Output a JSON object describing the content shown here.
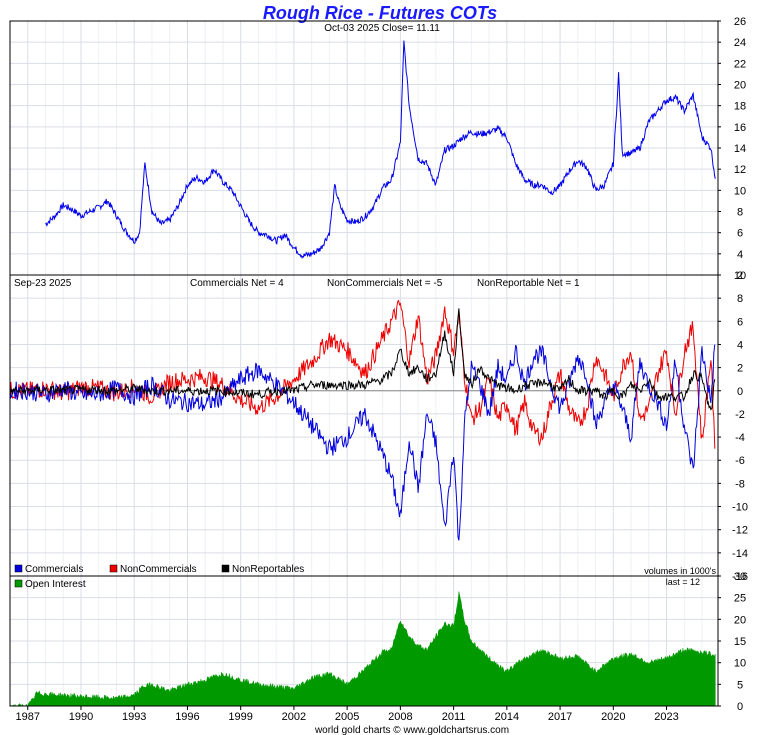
{
  "title": "Rough Rice - Futures COTs",
  "footer": "world gold charts © www.goldchartsrus.com",
  "colors": {
    "title": "#1a1aff",
    "price": "#0000ee",
    "commercials": "#0000dd",
    "noncommercials": "#ee0000",
    "nonreportables": "#000000",
    "open_interest": "#009900",
    "grid": "#d9dde6"
  },
  "chart_data": [
    {
      "type": "line",
      "name": "price-panel",
      "subtitle": "Oct-03  2025   Close= 11.11",
      "ylim": [
        2,
        26
      ],
      "yticks": [
        "2",
        "4",
        "6",
        "8",
        "10",
        "12",
        "14",
        "16",
        "18",
        "20",
        "22",
        "24",
        "26"
      ],
      "x": [
        1988.0,
        1988.5,
        1989.0,
        1989.5,
        1990.0,
        1990.5,
        1991.0,
        1991.5,
        1992.0,
        1992.5,
        1993.0,
        1993.3,
        1993.6,
        1994.0,
        1994.5,
        1995.0,
        1995.5,
        1996.0,
        1996.5,
        1997.0,
        1997.5,
        1998.0,
        1998.5,
        1999.0,
        1999.5,
        2000.0,
        2000.5,
        2001.0,
        2001.5,
        2002.0,
        2002.5,
        2003.0,
        2003.5,
        2004.0,
        2004.3,
        2004.6,
        2005.0,
        2005.5,
        2006.0,
        2006.5,
        2007.0,
        2007.5,
        2008.0,
        2008.2,
        2008.5,
        2009.0,
        2009.5,
        2010.0,
        2010.5,
        2011.0,
        2011.5,
        2012.0,
        2012.5,
        2013.0,
        2013.5,
        2014.0,
        2014.5,
        2015.0,
        2015.5,
        2016.0,
        2016.5,
        2017.0,
        2017.5,
        2018.0,
        2018.5,
        2019.0,
        2019.5,
        2020.0,
        2020.3,
        2020.5,
        2021.0,
        2021.5,
        2022.0,
        2022.5,
        2023.0,
        2023.5,
        2024.0,
        2024.5,
        2025.0,
        2025.5,
        2025.75
      ],
      "y": [
        6.8,
        7.5,
        8.6,
        8.2,
        7.6,
        8.0,
        8.4,
        9.0,
        7.6,
        6.2,
        5.2,
        6.0,
        12.5,
        8.0,
        6.8,
        7.2,
        8.6,
        10.5,
        11.2,
        10.8,
        12.0,
        10.8,
        10.0,
        8.5,
        7.0,
        6.0,
        5.8,
        5.2,
        5.8,
        4.6,
        3.8,
        4.0,
        4.5,
        6.0,
        10.4,
        8.5,
        7.2,
        7.0,
        7.5,
        8.5,
        10.2,
        11.0,
        14.5,
        24.0,
        18.0,
        13.0,
        12.5,
        10.5,
        13.8,
        14.2,
        15.0,
        15.5,
        15.3,
        15.5,
        15.8,
        15.0,
        12.5,
        11.0,
        10.5,
        10.5,
        9.8,
        10.4,
        11.8,
        12.8,
        12.2,
        10.0,
        10.5,
        12.5,
        21.0,
        13.5,
        13.5,
        14.0,
        16.5,
        17.5,
        18.5,
        18.8,
        17.5,
        19.0,
        15.0,
        14.0,
        11.1
      ]
    },
    {
      "type": "line",
      "name": "cot-panel",
      "subtitle": "Sep-23  2025",
      "labels": [
        "Commercials Net = 4",
        "NonCommercials Net = -5",
        "NonReportable Net = 1"
      ],
      "ylim": [
        -16,
        10
      ],
      "yticks": [
        "10",
        "8",
        "6",
        "4",
        "2",
        "0",
        "-2",
        "-4",
        "-6",
        "-8",
        "-10",
        "-12",
        "-14",
        "-16"
      ],
      "volumes_note": "volumes in 1000's",
      "x": [
        1986.0,
        1987.0,
        1988.0,
        1989.0,
        1990.0,
        1991.0,
        1992.0,
        1993.0,
        1994.0,
        1995.0,
        1996.0,
        1997.0,
        1998.0,
        1999.0,
        2000.0,
        2001.0,
        2002.0,
        2003.0,
        2004.0,
        2005.0,
        2006.0,
        2007.0,
        2007.5,
        2008.0,
        2008.5,
        2009.0,
        2009.5,
        2010.0,
        2010.5,
        2011.0,
        2011.3,
        2011.6,
        2012.0,
        2012.5,
        2013.0,
        2013.5,
        2014.0,
        2014.5,
        2015.0,
        2015.5,
        2016.0,
        2016.5,
        2017.0,
        2017.5,
        2018.0,
        2018.5,
        2019.0,
        2019.5,
        2020.0,
        2020.5,
        2021.0,
        2021.5,
        2022.0,
        2022.5,
        2023.0,
        2023.5,
        2024.0,
        2024.5,
        2025.0,
        2025.5,
        2025.72
      ],
      "series": [
        {
          "name": "Commercials",
          "values": [
            0,
            0,
            -0.3,
            0.2,
            -0.4,
            -0.3,
            0.2,
            -0.5,
            0.5,
            -0.8,
            -1.0,
            -1.2,
            -0.5,
            1.0,
            1.8,
            0.5,
            -1.0,
            -3.0,
            -5.0,
            -4.0,
            -2.0,
            -5.5,
            -7.5,
            -11.0,
            -4.0,
            -8.5,
            -2.0,
            -4.5,
            -12.0,
            -5.0,
            -13.5,
            -3.0,
            2.0,
            0.5,
            -2.0,
            2.0,
            0.8,
            3.5,
            0.5,
            3.0,
            3.2,
            0.5,
            -1.5,
            0.5,
            3.0,
            1.5,
            -3.0,
            -1.0,
            0.5,
            -1.5,
            -4.0,
            2.5,
            0.5,
            -1.0,
            -3.0,
            2.5,
            -3.0,
            -7.0,
            3.5,
            -1.0,
            4.0
          ]
        },
        {
          "name": "NonCommercials",
          "values": [
            0,
            0,
            0.2,
            -0.2,
            0.3,
            0.2,
            -0.2,
            0.3,
            -0.5,
            0.8,
            1.0,
            1.2,
            0.5,
            -0.8,
            -1.5,
            -0.5,
            1.0,
            2.5,
            4.5,
            3.5,
            1.5,
            4.5,
            6.0,
            7.5,
            2.5,
            6.5,
            1.0,
            3.0,
            7.0,
            3.5,
            6.5,
            1.5,
            -2.5,
            -1.5,
            1.0,
            -2.5,
            -1.0,
            -3.5,
            -1.0,
            -3.5,
            -4.0,
            -1.0,
            1.5,
            -1.5,
            -3.0,
            -1.5,
            3.0,
            1.5,
            -0.5,
            2.0,
            3.5,
            -2.5,
            -1.5,
            1.5,
            3.5,
            -2.0,
            3.5,
            5.5,
            -4.5,
            3.0,
            -5.0
          ]
        },
        {
          "name": "NonReportables",
          "values": [
            0,
            0,
            0.1,
            0,
            0.1,
            0.1,
            0,
            0.2,
            0,
            0,
            0,
            0,
            0,
            -0.2,
            -0.3,
            0,
            0,
            0.5,
            0.5,
            0.5,
            0.5,
            1.0,
            1.5,
            3.5,
            1.5,
            2.0,
            1.0,
            1.5,
            5.0,
            1.5,
            7.0,
            1.5,
            0.5,
            2.0,
            1.0,
            0.5,
            0.2,
            0,
            0.5,
            0.5,
            0.8,
            0.5,
            0,
            1.0,
            0,
            0,
            0,
            -0.5,
            0,
            -0.5,
            0.5,
            0,
            1.0,
            -0.5,
            -0.5,
            -0.5,
            -0.5,
            1.5,
            1.0,
            -2.0,
            1.0
          ]
        }
      ]
    },
    {
      "type": "area",
      "name": "open-interest-panel",
      "series_name": "Open Interest",
      "note": "last = 12",
      "ylim": [
        0,
        30
      ],
      "yticks": [
        "0",
        "5",
        "10",
        "15",
        "20",
        "25",
        "30"
      ],
      "x": [
        1986.0,
        1987.0,
        1987.3,
        1987.5,
        1988.0,
        1989.0,
        1990.0,
        1991.0,
        1992.0,
        1993.0,
        1993.5,
        1994.0,
        1995.0,
        1996.0,
        1997.0,
        1998.0,
        1999.0,
        2000.0,
        2001.0,
        2002.0,
        2003.0,
        2004.0,
        2005.0,
        2006.0,
        2007.0,
        2007.5,
        2008.0,
        2008.5,
        2009.0,
        2009.5,
        2010.0,
        2010.5,
        2011.0,
        2011.3,
        2011.6,
        2012.0,
        2013.0,
        2014.0,
        2015.0,
        2016.0,
        2017.0,
        2018.0,
        2019.0,
        2020.0,
        2021.0,
        2022.0,
        2023.0,
        2024.0,
        2025.0,
        2025.5,
        2025.75
      ],
      "values": [
        0,
        0,
        1.5,
        3.0,
        2.8,
        2.5,
        2.2,
        2.0,
        1.8,
        2.5,
        4.5,
        5.0,
        3.5,
        5.0,
        6.0,
        7.5,
        6.0,
        5.0,
        4.5,
        4.0,
        6.5,
        7.5,
        5.0,
        8.5,
        12.5,
        13.0,
        20.0,
        16.0,
        14.0,
        13.0,
        16.0,
        19.0,
        18.5,
        26.0,
        20.0,
        15.0,
        11.0,
        8.0,
        11.0,
        13.0,
        11.0,
        11.5,
        8.0,
        11.0,
        12.0,
        10.0,
        11.0,
        13.0,
        12.5,
        12.0,
        12.0
      ]
    }
  ],
  "x_axis": {
    "ticks": [
      "1987",
      "1990",
      "1993",
      "1996",
      "1999",
      "2002",
      "2005",
      "2008",
      "2011",
      "2014",
      "2017",
      "2020",
      "2023"
    ],
    "tick_years": [
      1987,
      1990,
      1993,
      1996,
      1999,
      2002,
      2005,
      2008,
      2011,
      2014,
      2017,
      2020,
      2023
    ],
    "xlim": [
      1986.0,
      2025.9
    ]
  },
  "legend": {
    "commercials": "Commercials",
    "noncommercials": "NonCommercials",
    "nonreportables": "NonReportables",
    "open_interest": "Open Interest"
  }
}
